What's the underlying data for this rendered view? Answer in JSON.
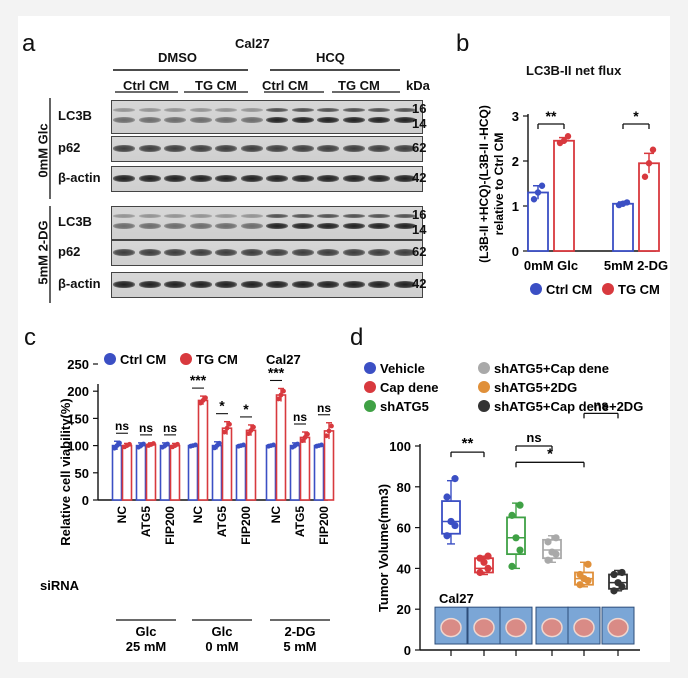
{
  "panels": {
    "a": {
      "letter": "a",
      "cell_line": "Cal27",
      "groups": [
        "DMSO",
        "HCQ"
      ],
      "conditions": [
        "Ctrl CM",
        "TG CM",
        "Ctrl CM",
        "TG CM"
      ],
      "kda_label": "kDa",
      "sections": [
        {
          "label": "0mM Glc",
          "rows": [
            {
              "protein": "LC3B",
              "markers": [
                "16",
                "14"
              ]
            },
            {
              "protein": "p62",
              "markers": [
                "62"
              ]
            },
            {
              "protein": "β-actin",
              "markers": [
                "42"
              ]
            }
          ]
        },
        {
          "label": "5mM 2-DG",
          "rows": [
            {
              "protein": "LC3B",
              "markers": [
                "16",
                "14"
              ]
            },
            {
              "protein": "p62",
              "markers": [
                "62"
              ]
            },
            {
              "protein": "β-actin",
              "markers": [
                "42"
              ]
            }
          ]
        }
      ]
    },
    "b": {
      "letter": "b",
      "legend": [
        "Ctrl CM",
        "TG CM"
      ],
      "chart_data": {
        "type": "bar",
        "title": "LC3B-II net flux",
        "ylabel": "(L3B-II +HCQ)-(L3B-II -HCQ) relative to Ctrl CM",
        "categories": [
          "0mM Glc",
          "5mM 2-DG"
        ],
        "series": [
          {
            "name": "Ctrl CM",
            "values": [
              1.3,
              1.05
            ],
            "errors": [
              0.15,
              0.04
            ],
            "color": "#3b4fc4"
          },
          {
            "name": "TG CM",
            "values": [
              2.45,
              1.95
            ],
            "errors": [
              0.07,
              0.22
            ],
            "color": "#d8393e"
          }
        ],
        "yticks": [
          "0",
          "1",
          "2",
          "3"
        ],
        "ylim": [
          0,
          3
        ],
        "significance": [
          "**",
          "*"
        ]
      }
    },
    "c": {
      "letter": "c",
      "legend": [
        "Ctrl CM",
        "TG CM"
      ],
      "cell_line": "Cal27",
      "siRNA_label": "siRNA",
      "chart_data": {
        "type": "bar",
        "ylabel": "Relative cell viability(%)",
        "yticks": [
          "0",
          "50",
          "100",
          "150",
          "200",
          "250"
        ],
        "ylim": [
          0,
          250
        ],
        "groups": [
          {
            "name": [
              "Glc",
              "25 mM"
            ],
            "sirnas": [
              "NC",
              "ATG5",
              "FIP200"
            ]
          },
          {
            "name": [
              "Glc",
              "0 mM"
            ],
            "sirnas": [
              "NC",
              "ATG5",
              "FIP200"
            ]
          },
          {
            "name": [
              "2-DG",
              "5 mM"
            ],
            "sirnas": [
              "NC",
              "ATG5",
              "FIP200"
            ]
          }
        ],
        "series": [
          {
            "name": "Ctrl CM",
            "values": [
              100,
              100,
              100,
              100,
              100,
              100,
              100,
              100,
              100
            ],
            "errors": [
              8,
              5,
              5,
              2,
              7,
              2,
              2,
              5,
              2
            ],
            "color": "#3b4fc4"
          },
          {
            "name": "TG CM",
            "values": [
              100,
              102,
              100,
              183,
              132,
              128,
              193,
              115,
              127
            ],
            "errors": [
              4,
              3,
              4,
              8,
              12,
              10,
              12,
              10,
              15
            ],
            "color": "#d8393e"
          }
        ],
        "significance": [
          "ns",
          "ns",
          "ns",
          "***",
          "*",
          "*",
          "***",
          "ns",
          "ns"
        ]
      }
    },
    "d": {
      "letter": "d",
      "legend": [
        {
          "label": "Vehicle",
          "color": "#3b4fc4"
        },
        {
          "label": "shATG5+Cap dene",
          "color": "#a9a9a9"
        },
        {
          "label": "Cap dene",
          "color": "#d8393e"
        },
        {
          "label": "shATG5+2DG",
          "color": "#e0903a"
        },
        {
          "label": "shATG5",
          "color": "#3fa145"
        },
        {
          "label": "shATG5+Cap dene+2DG",
          "color": "#333333"
        }
      ],
      "cell_line": "Cal27",
      "chart_data": {
        "type": "box",
        "ylabel": "Tumor Volume(mm3)",
        "yticks": [
          "0",
          "20",
          "40",
          "60",
          "80",
          "100"
        ],
        "ylim": [
          0,
          100
        ],
        "groups": [
          {
            "name": "Vehicle",
            "color": "#3b4fc4",
            "min": 52,
            "q1": 57,
            "median": 63,
            "q3": 73,
            "max": 83,
            "points": [
              56,
              61,
              63,
              75,
              84
            ]
          },
          {
            "name": "Cap dene",
            "color": "#d8393e",
            "min": 37,
            "q1": 38,
            "median": 40,
            "q3": 45,
            "max": 46,
            "points": [
              38,
              40,
              43,
              45,
              46
            ]
          },
          {
            "name": "shATG5",
            "color": "#3fa145",
            "min": 40,
            "q1": 47,
            "median": 55,
            "q3": 65,
            "max": 72,
            "points": [
              41,
              49,
              55,
              66,
              71
            ]
          },
          {
            "name": "shATG5+Cap dene",
            "color": "#a9a9a9",
            "min": 43,
            "q1": 45,
            "median": 49,
            "q3": 54,
            "max": 56,
            "points": [
              44,
              47,
              48,
              53,
              55
            ]
          },
          {
            "name": "shATG5+2DG",
            "color": "#e0903a",
            "min": 31,
            "q1": 32,
            "median": 35,
            "q3": 38,
            "max": 43,
            "points": [
              32,
              34,
              35,
              37,
              42
            ]
          },
          {
            "name": "shATG5+Cap dene+2DG",
            "color": "#333333",
            "min": 29,
            "q1": 30,
            "median": 33,
            "q3": 37,
            "max": 39,
            "points": [
              29,
              31,
              33,
              37,
              38
            ]
          }
        ],
        "significance": [
          "**",
          "ns",
          "*",
          "ns"
        ]
      }
    }
  }
}
